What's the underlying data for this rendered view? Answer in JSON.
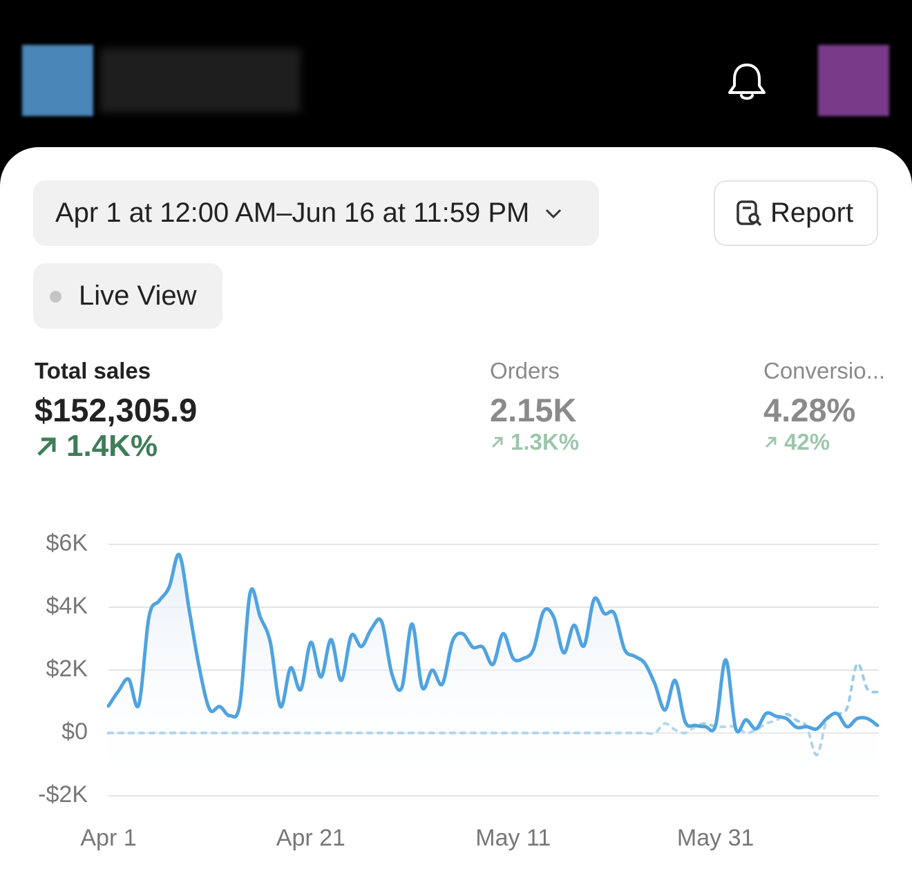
{
  "filters": {
    "date_range": "Apr 1 at 12:00 AM–Jun 16 at 11:59 PM",
    "report": "Report",
    "live_view": "Live View"
  },
  "metrics": [
    {
      "label": "Total sales",
      "value": "$152,305.9",
      "change": "1.4K%"
    },
    {
      "label": "Orders",
      "value": "2.15K",
      "change": "1.3K%"
    },
    {
      "label": "Conversio...",
      "value": "4.28%",
      "change": "42%"
    }
  ],
  "chart_data": {
    "type": "line",
    "categories": [
      "Apr 1",
      null,
      null,
      null,
      null,
      null,
      null,
      null,
      null,
      null,
      null,
      null,
      null,
      null,
      null,
      null,
      null,
      null,
      null,
      null,
      "Apr 21",
      null,
      null,
      null,
      null,
      null,
      null,
      null,
      null,
      null,
      null,
      null,
      null,
      null,
      null,
      null,
      null,
      null,
      null,
      null,
      "May 11",
      null,
      null,
      null,
      null,
      null,
      null,
      null,
      null,
      null,
      null,
      null,
      null,
      null,
      null,
      null,
      null,
      null,
      null,
      null,
      "May 31",
      null,
      null,
      null,
      null,
      null,
      null,
      null,
      null,
      null,
      null,
      null,
      null,
      null,
      null,
      null,
      null
    ],
    "series": [
      {
        "color": "#4fa3e0",
        "values": [
          860,
          1340,
          1710,
          900,
          3690,
          4200,
          4640,
          5670,
          3870,
          2040,
          750,
          840,
          550,
          950,
          4460,
          3690,
          2880,
          840,
          2070,
          1380,
          2880,
          1780,
          2970,
          1670,
          3100,
          2750,
          3320,
          3540,
          1890,
          1450,
          3470,
          1450,
          2000,
          1560,
          2920,
          3160,
          2730,
          2730,
          2180,
          3160,
          2370,
          2370,
          2660,
          3870,
          3690,
          2550,
          3430,
          2770,
          4260,
          3800,
          3800,
          2660,
          2440,
          2220,
          1560,
          730,
          1670,
          350,
          240,
          200,
          240,
          2330,
          130,
          420,
          130,
          620,
          530,
          460,
          180,
          200,
          130,
          460,
          620,
          200,
          460,
          460,
          240
        ]
      },
      {
        "color": "#9ccbe8",
        "dashed": true,
        "values": [
          0,
          0,
          0,
          0,
          0,
          0,
          0,
          0,
          0,
          0,
          0,
          0,
          0,
          0,
          0,
          0,
          0,
          0,
          0,
          0,
          0,
          0,
          0,
          0,
          0,
          0,
          0,
          0,
          0,
          0,
          0,
          0,
          0,
          0,
          0,
          0,
          0,
          0,
          0,
          0,
          0,
          0,
          0,
          0,
          0,
          0,
          0,
          0,
          0,
          0,
          0,
          0,
          0,
          0,
          0,
          300,
          100,
          0,
          200,
          300,
          200,
          200,
          200,
          0,
          100,
          300,
          400,
          600,
          400,
          200,
          -700,
          400,
          600,
          800,
          2200,
          1400,
          1300
        ]
      }
    ],
    "ylim": [
      -2000,
      6000
    ],
    "yticks": [
      {
        "value": -2000,
        "label": "-$2K"
      },
      {
        "value": 0,
        "label": "$0"
      },
      {
        "value": 2000,
        "label": "$2K"
      },
      {
        "value": 4000,
        "label": "$4K"
      },
      {
        "value": 6000,
        "label": "$6K"
      }
    ],
    "grid": true
  }
}
